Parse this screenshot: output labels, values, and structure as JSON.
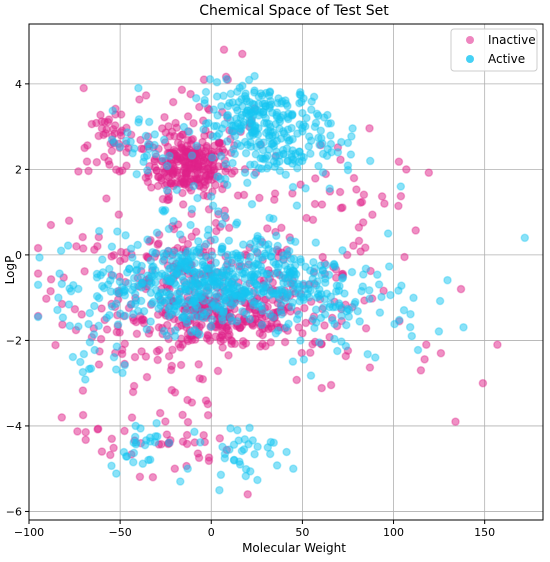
{
  "chart_data": {
    "type": "scatter",
    "title": "Chemical Space of Test Set",
    "xlabel": "Molecular Weight",
    "ylabel": "LogP",
    "xlim": [
      -100,
      182
    ],
    "ylim": [
      -6.2,
      5.4
    ],
    "xticks": [
      -100,
      -50,
      0,
      50,
      100,
      150
    ],
    "yticks": [
      -6,
      -4,
      -2,
      0,
      2,
      4
    ],
    "xtick_labels": [
      "−100",
      "−50",
      "0",
      "50",
      "100",
      "150"
    ],
    "ytick_labels": [
      "−6",
      "−4",
      "−2",
      "0",
      "2",
      "4"
    ],
    "grid": true,
    "legend_position": "top-right",
    "series": [
      {
        "name": "Inactive",
        "color": "#e0218a",
        "clusters": [
          {
            "cx": -12,
            "cy": 2.1,
            "sx": 11,
            "sy": 0.35,
            "n": 240
          },
          {
            "cx": -8,
            "cy": 3.0,
            "sx": 18,
            "sy": 0.5,
            "n": 50
          },
          {
            "cx": -55,
            "cy": 2.6,
            "sx": 9,
            "sy": 0.35,
            "n": 45
          },
          {
            "cx": 8,
            "cy": -1.5,
            "sx": 22,
            "sy": 0.35,
            "n": 220
          },
          {
            "cx": -15,
            "cy": -0.6,
            "sx": 35,
            "sy": 0.7,
            "n": 200
          },
          {
            "cx": -40,
            "cy": -2.3,
            "sx": 25,
            "sy": 0.6,
            "n": 50
          },
          {
            "cx": -30,
            "cy": -4.3,
            "sx": 20,
            "sy": 0.4,
            "n": 40
          },
          {
            "cx": 60,
            "cy": -1.5,
            "sx": 25,
            "sy": 1.0,
            "n": 60
          },
          {
            "cx": 20,
            "cy": 0.9,
            "sx": 40,
            "sy": 1.0,
            "n": 60
          },
          {
            "cx": 80,
            "cy": 1.2,
            "sx": 15,
            "sy": 0.6,
            "n": 20
          }
        ],
        "points": [
          [
            7,
            4.8
          ],
          [
            17,
            4.7
          ],
          [
            -4,
            4.1
          ],
          [
            118,
            -2.1
          ],
          [
            126,
            -2.3
          ],
          [
            137,
            -0.8
          ],
          [
            149,
            -3.0
          ],
          [
            157,
            -2.1
          ],
          [
            134,
            -3.9
          ],
          [
            95,
            1.2
          ],
          [
            107,
            2.0
          ],
          [
            -28,
            -3.7
          ],
          [
            -78,
            0.8
          ],
          [
            -82,
            -3.8
          ],
          [
            -60,
            -4.6
          ],
          [
            20,
            -5.6
          ],
          [
            -20,
            -5.0
          ],
          [
            -32,
            -5.2
          ],
          [
            -70,
            3.9
          ],
          [
            115,
            -2.7
          ],
          [
            -88,
            0.7
          ]
        ]
      },
      {
        "name": "Active",
        "color": "#16c5f2",
        "clusters": [
          {
            "cx": 28,
            "cy": 3.1,
            "sx": 18,
            "sy": 0.45,
            "n": 230
          },
          {
            "cx": 45,
            "cy": 2.3,
            "sx": 18,
            "sy": 0.3,
            "n": 60
          },
          {
            "cx": -10,
            "cy": -0.7,
            "sx": 28,
            "sy": 0.5,
            "n": 420
          },
          {
            "cx": 40,
            "cy": -0.6,
            "sx": 30,
            "sy": 0.55,
            "n": 150
          },
          {
            "cx": 70,
            "cy": -1.2,
            "sx": 25,
            "sy": 0.6,
            "n": 60
          },
          {
            "cx": -40,
            "cy": 2.5,
            "sx": 10,
            "sy": 0.4,
            "n": 25
          },
          {
            "cx": -40,
            "cy": -4.4,
            "sx": 8,
            "sy": 0.3,
            "n": 25
          },
          {
            "cx": 15,
            "cy": -4.6,
            "sx": 10,
            "sy": 0.3,
            "n": 35
          },
          {
            "cx": -60,
            "cy": -2.3,
            "sx": 10,
            "sy": 0.5,
            "n": 20
          },
          {
            "cx": 0,
            "cy": 1.0,
            "sx": 25,
            "sy": 0.5,
            "n": 30
          }
        ],
        "points": [
          [
            172,
            0.4
          ],
          [
            104,
            1.6
          ],
          [
            97,
            0.5
          ],
          [
            45,
            -5.0
          ],
          [
            -17,
            -5.3
          ],
          [
            -95,
            -0.7
          ],
          [
            90,
            -2.4
          ],
          [
            110,
            -1.9
          ],
          [
            -40,
            3.9
          ]
        ]
      }
    ]
  }
}
